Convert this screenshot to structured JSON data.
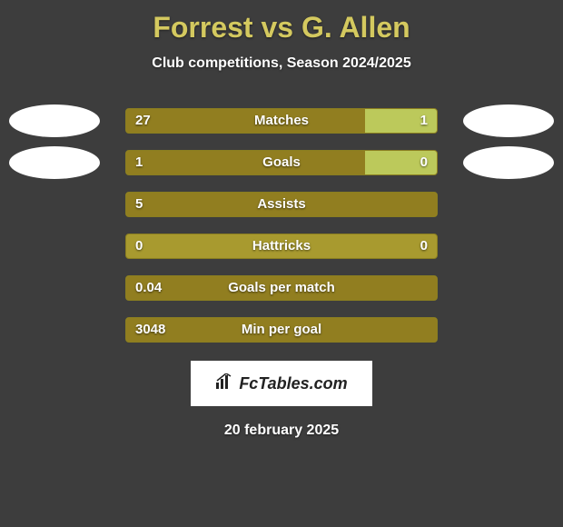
{
  "title": "Forrest vs G. Allen",
  "subtitle": "Club competitions, Season 2024/2025",
  "date": "20 february 2025",
  "logo_text": "FcTables.com",
  "colors": {
    "background": "#3d3d3d",
    "title_color": "#d4c95f",
    "bar_track": "#a89a2f",
    "bar_fill_left": "#917e20",
    "bar_fill_right": "#bcc95b",
    "text_white": "#ffffff",
    "logo_bg": "#ffffff"
  },
  "rows": [
    {
      "label": "Matches",
      "left_val": "27",
      "right_val": "1",
      "left_pct": 77,
      "right_pct": 23,
      "show_left_avatar": true,
      "show_right_avatar": true,
      "show_right_val": true
    },
    {
      "label": "Goals",
      "left_val": "1",
      "right_val": "0",
      "left_pct": 77,
      "right_pct": 23,
      "show_left_avatar": true,
      "show_right_avatar": true,
      "show_right_val": true
    },
    {
      "label": "Assists",
      "left_val": "5",
      "right_val": "",
      "left_pct": 100,
      "right_pct": 0,
      "show_left_avatar": false,
      "show_right_avatar": false,
      "show_right_val": false
    },
    {
      "label": "Hattricks",
      "left_val": "0",
      "right_val": "0",
      "left_pct": 0,
      "right_pct": 0,
      "show_left_avatar": false,
      "show_right_avatar": false,
      "show_right_val": true
    },
    {
      "label": "Goals per match",
      "left_val": "0.04",
      "right_val": "",
      "left_pct": 100,
      "right_pct": 0,
      "show_left_avatar": false,
      "show_right_avatar": false,
      "show_right_val": false
    },
    {
      "label": "Min per goal",
      "left_val": "3048",
      "right_val": "",
      "left_pct": 100,
      "right_pct": 0,
      "show_left_avatar": false,
      "show_right_avatar": false,
      "show_right_val": false
    }
  ]
}
